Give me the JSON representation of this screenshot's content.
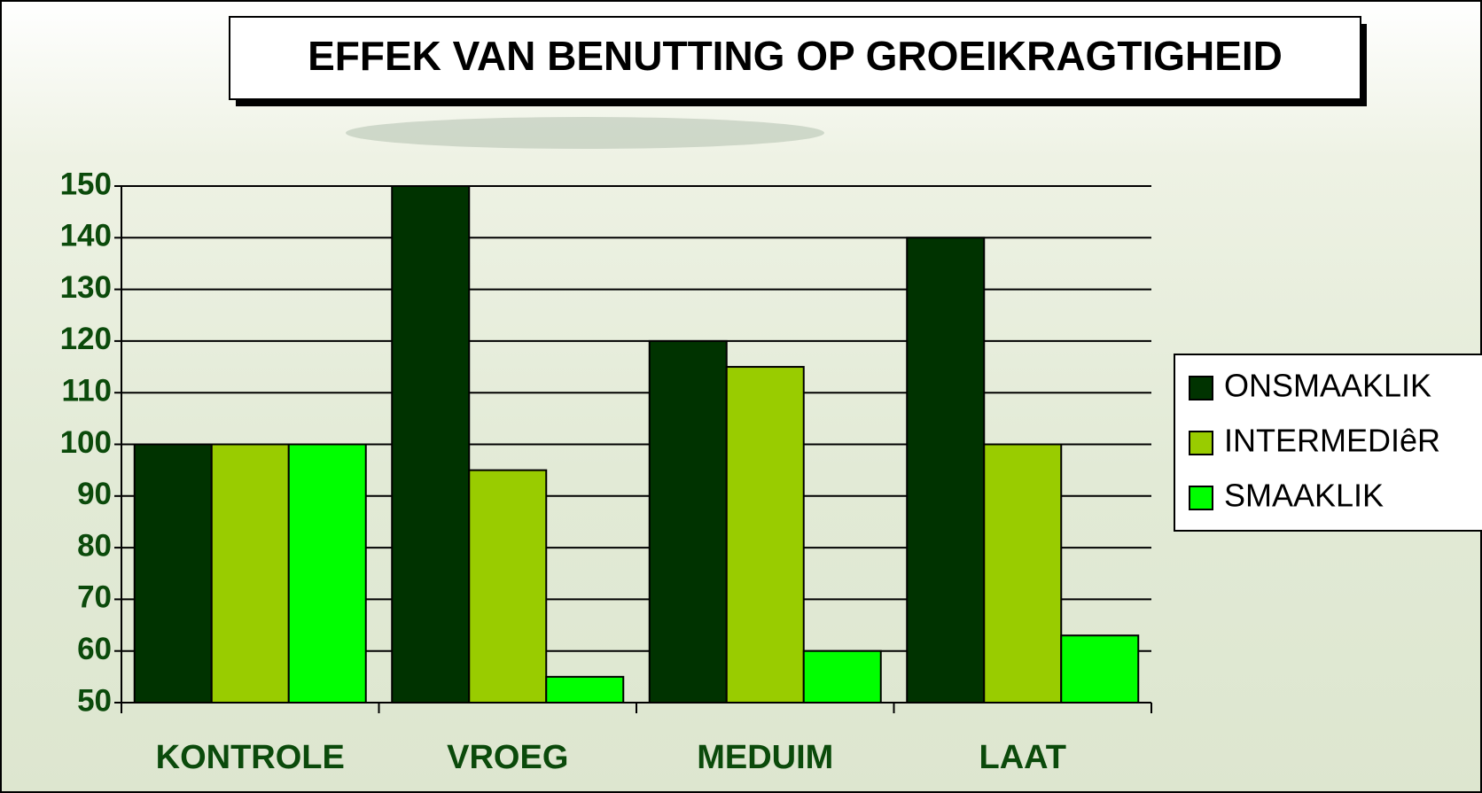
{
  "chart_data": {
    "type": "bar",
    "title": "EFFEK VAN BENUTTING OP GROEIKRAGTIGHEID",
    "categories": [
      "KONTROLE",
      "VROEG",
      "MEDUIM",
      "LAAT"
    ],
    "series": [
      {
        "name": "ONSMAAKLIK",
        "color": "#003300",
        "values": [
          100,
          150,
          120,
          140
        ]
      },
      {
        "name": "INTERMEDIêR",
        "color": "#99cc00",
        "values": [
          100,
          95,
          115,
          100
        ]
      },
      {
        "name": "SMAAKLIK",
        "color": "#00ff00",
        "values": [
          100,
          55,
          60,
          63
        ]
      }
    ],
    "ylim": [
      50,
      150
    ],
    "yticks": [
      50,
      60,
      70,
      80,
      90,
      100,
      110,
      120,
      130,
      140,
      150
    ],
    "grid": true,
    "legend": "right"
  }
}
